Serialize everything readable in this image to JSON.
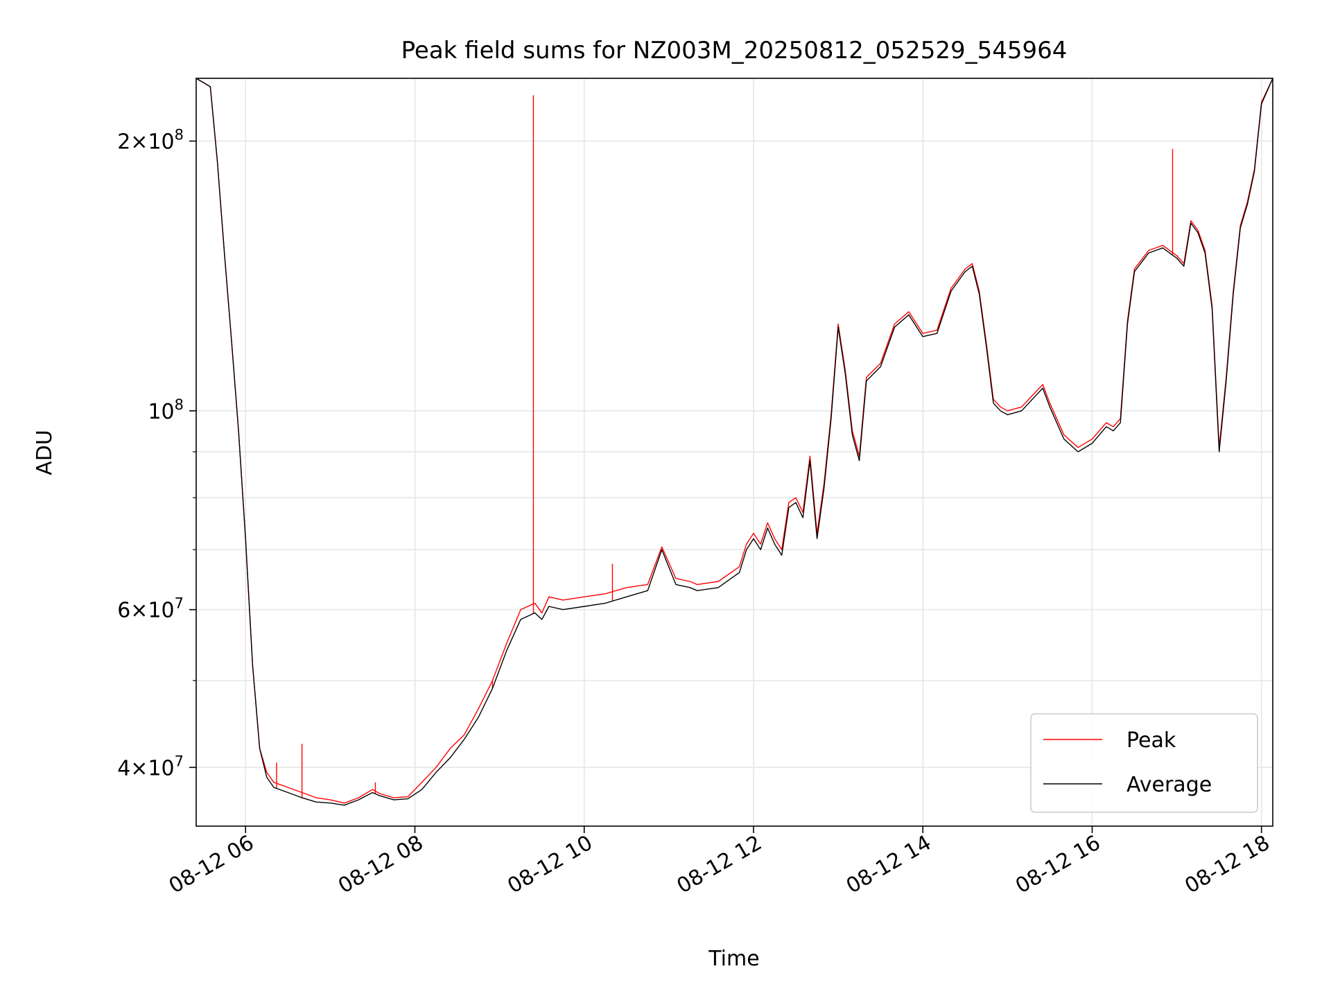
{
  "chart_data": {
    "type": "line",
    "title": "Peak field sums for NZ003M_20250812_052529_545964",
    "xlabel": "Time",
    "ylabel": "ADU",
    "y_scale": "log",
    "x_range": [
      "2025-08-12 05:25",
      "2025-08-12 18:08"
    ],
    "ylim": [
      34400000,
      235000000
    ],
    "grid": true,
    "legend_position": "lower-right",
    "x_ticks": [
      {
        "time": "2025-08-12 06:00",
        "label": "08-12 06"
      },
      {
        "time": "2025-08-12 08:00",
        "label": "08-12 08"
      },
      {
        "time": "2025-08-12 10:00",
        "label": "08-12 10"
      },
      {
        "time": "2025-08-12 12:00",
        "label": "08-12 12"
      },
      {
        "time": "2025-08-12 14:00",
        "label": "08-12 14"
      },
      {
        "time": "2025-08-12 16:00",
        "label": "08-12 16"
      },
      {
        "time": "2025-08-12 18:00",
        "label": "08-12 18"
      }
    ],
    "y_major_ticks": [
      {
        "value": 40000000,
        "mantissa": "4",
        "exponent": "7"
      },
      {
        "value": 60000000,
        "mantissa": "6",
        "exponent": "7"
      },
      {
        "value": 100000000,
        "mantissa": "",
        "exponent": "8"
      },
      {
        "value": 200000000,
        "mantissa": "2",
        "exponent": "8"
      }
    ],
    "y_minor_grid": [
      50000000,
      70000000,
      80000000,
      90000000
    ],
    "series": [
      {
        "name": "Average",
        "color": "#000000",
        "x": [
          "2025-08-12 05:25",
          "2025-08-12 05:35",
          "2025-08-12 05:40",
          "2025-08-12 05:45",
          "2025-08-12 05:50",
          "2025-08-12 05:55",
          "2025-08-12 06:00",
          "2025-08-12 06:05",
          "2025-08-12 06:10",
          "2025-08-12 06:15",
          "2025-08-12 06:20",
          "2025-08-12 06:30",
          "2025-08-12 06:40",
          "2025-08-12 06:50",
          "2025-08-12 07:00",
          "2025-08-12 07:10",
          "2025-08-12 07:20",
          "2025-08-12 07:30",
          "2025-08-12 07:35",
          "2025-08-12 07:45",
          "2025-08-12 07:55",
          "2025-08-12 08:05",
          "2025-08-12 08:15",
          "2025-08-12 08:25",
          "2025-08-12 08:35",
          "2025-08-12 08:45",
          "2025-08-12 08:55",
          "2025-08-12 09:05",
          "2025-08-12 09:15",
          "2025-08-12 09:20",
          "2025-08-12 09:25",
          "2025-08-12 09:30",
          "2025-08-12 09:35",
          "2025-08-12 09:45",
          "2025-08-12 10:00",
          "2025-08-12 10:15",
          "2025-08-12 10:30",
          "2025-08-12 10:45",
          "2025-08-12 10:55",
          "2025-08-12 11:05",
          "2025-08-12 11:15",
          "2025-08-12 11:20",
          "2025-08-12 11:35",
          "2025-08-12 11:50",
          "2025-08-12 11:55",
          "2025-08-12 12:00",
          "2025-08-12 12:05",
          "2025-08-12 12:10",
          "2025-08-12 12:15",
          "2025-08-12 12:20",
          "2025-08-12 12:25",
          "2025-08-12 12:30",
          "2025-08-12 12:35",
          "2025-08-12 12:40",
          "2025-08-12 12:45",
          "2025-08-12 12:50",
          "2025-08-12 12:55",
          "2025-08-12 13:00",
          "2025-08-12 13:05",
          "2025-08-12 13:10",
          "2025-08-12 13:15",
          "2025-08-12 13:20",
          "2025-08-12 13:30",
          "2025-08-12 13:40",
          "2025-08-12 13:50",
          "2025-08-12 14:00",
          "2025-08-12 14:10",
          "2025-08-12 14:20",
          "2025-08-12 14:30",
          "2025-08-12 14:35",
          "2025-08-12 14:40",
          "2025-08-12 14:45",
          "2025-08-12 14:50",
          "2025-08-12 14:55",
          "2025-08-12 15:00",
          "2025-08-12 15:10",
          "2025-08-12 15:20",
          "2025-08-12 15:25",
          "2025-08-12 15:30",
          "2025-08-12 15:40",
          "2025-08-12 15:50",
          "2025-08-12 16:00",
          "2025-08-12 16:10",
          "2025-08-12 16:15",
          "2025-08-12 16:20",
          "2025-08-12 16:25",
          "2025-08-12 16:30",
          "2025-08-12 16:40",
          "2025-08-12 16:50",
          "2025-08-12 17:00",
          "2025-08-12 17:05",
          "2025-08-12 17:10",
          "2025-08-12 17:15",
          "2025-08-12 17:20",
          "2025-08-12 17:25",
          "2025-08-12 17:30",
          "2025-08-12 17:35",
          "2025-08-12 17:40",
          "2025-08-12 17:45",
          "2025-08-12 17:50",
          "2025-08-12 17:55",
          "2025-08-12 18:00",
          "2025-08-12 18:08"
        ],
        "y": [
          235000000,
          230000000,
          190000000,
          150000000,
          120000000,
          95000000,
          72000000,
          52000000,
          42000000,
          39000000,
          38000000,
          37500000,
          37000000,
          36600000,
          36500000,
          36300000,
          36800000,
          37500000,
          37200000,
          36800000,
          36900000,
          37800000,
          39500000,
          41000000,
          43000000,
          45500000,
          49000000,
          54000000,
          58500000,
          59000000,
          59500000,
          58500000,
          60500000,
          60000000,
          60500000,
          61000000,
          62000000,
          63000000,
          70000000,
          64000000,
          63500000,
          63000000,
          63500000,
          66000000,
          70000000,
          72000000,
          70000000,
          74000000,
          71000000,
          69000000,
          78000000,
          79000000,
          76000000,
          88000000,
          72000000,
          82000000,
          98000000,
          124000000,
          110000000,
          94000000,
          88000000,
          108000000,
          112000000,
          124000000,
          128000000,
          121000000,
          122000000,
          136000000,
          143000000,
          145000000,
          135000000,
          118000000,
          102000000,
          100000000,
          99000000,
          100000000,
          104000000,
          106000000,
          101000000,
          93000000,
          90000000,
          92000000,
          96000000,
          95000000,
          97000000,
          125000000,
          143000000,
          150000000,
          152000000,
          148000000,
          145000000,
          162000000,
          158000000,
          150000000,
          130000000,
          90000000,
          108000000,
          135000000,
          160000000,
          170000000,
          185000000,
          220000000,
          235000000
        ]
      },
      {
        "name": "Peak",
        "color": "#ff0000",
        "x": [
          "2025-08-12 05:25",
          "2025-08-12 05:35",
          "2025-08-12 05:40",
          "2025-08-12 05:45",
          "2025-08-12 05:50",
          "2025-08-12 05:55",
          "2025-08-12 06:00",
          "2025-08-12 06:05",
          "2025-08-12 06:10",
          "2025-08-12 06:15",
          "2025-08-12 06:20",
          "2025-08-12 06:30",
          "2025-08-12 06:40",
          "2025-08-12 06:50",
          "2025-08-12 07:00",
          "2025-08-12 07:10",
          "2025-08-12 07:20",
          "2025-08-12 07:30",
          "2025-08-12 07:35",
          "2025-08-12 07:45",
          "2025-08-12 07:55",
          "2025-08-12 08:05",
          "2025-08-12 08:15",
          "2025-08-12 08:25",
          "2025-08-12 08:35",
          "2025-08-12 08:45",
          "2025-08-12 08:55",
          "2025-08-12 09:05",
          "2025-08-12 09:15",
          "2025-08-12 09:20",
          "2025-08-12 09:25",
          "2025-08-12 09:30",
          "2025-08-12 09:35",
          "2025-08-12 09:45",
          "2025-08-12 10:00",
          "2025-08-12 10:15",
          "2025-08-12 10:30",
          "2025-08-12 10:45",
          "2025-08-12 10:55",
          "2025-08-12 11:05",
          "2025-08-12 11:15",
          "2025-08-12 11:20",
          "2025-08-12 11:35",
          "2025-08-12 11:50",
          "2025-08-12 11:55",
          "2025-08-12 12:00",
          "2025-08-12 12:05",
          "2025-08-12 12:10",
          "2025-08-12 12:15",
          "2025-08-12 12:20",
          "2025-08-12 12:25",
          "2025-08-12 12:30",
          "2025-08-12 12:35",
          "2025-08-12 12:40",
          "2025-08-12 12:45",
          "2025-08-12 12:50",
          "2025-08-12 12:55",
          "2025-08-12 13:00",
          "2025-08-12 13:05",
          "2025-08-12 13:10",
          "2025-08-12 13:15",
          "2025-08-12 13:20",
          "2025-08-12 13:30",
          "2025-08-12 13:40",
          "2025-08-12 13:50",
          "2025-08-12 14:00",
          "2025-08-12 14:10",
          "2025-08-12 14:20",
          "2025-08-12 14:30",
          "2025-08-12 14:35",
          "2025-08-12 14:40",
          "2025-08-12 14:45",
          "2025-08-12 14:50",
          "2025-08-12 14:55",
          "2025-08-12 15:00",
          "2025-08-12 15:10",
          "2025-08-12 15:20",
          "2025-08-12 15:25",
          "2025-08-12 15:30",
          "2025-08-12 15:40",
          "2025-08-12 15:50",
          "2025-08-12 16:00",
          "2025-08-12 16:10",
          "2025-08-12 16:15",
          "2025-08-12 16:20",
          "2025-08-12 16:25",
          "2025-08-12 16:30",
          "2025-08-12 16:40",
          "2025-08-12 16:50",
          "2025-08-12 17:00",
          "2025-08-12 17:05",
          "2025-08-12 17:10",
          "2025-08-12 17:15",
          "2025-08-12 17:20",
          "2025-08-12 17:25",
          "2025-08-12 17:30",
          "2025-08-12 17:35",
          "2025-08-12 17:40",
          "2025-08-12 17:45",
          "2025-08-12 17:50",
          "2025-08-12 17:55",
          "2025-08-12 18:00",
          "2025-08-12 18:08"
        ],
        "y": [
          235000000,
          230000000,
          190000000,
          150000000,
          120000000,
          95000000,
          72000000,
          52000000,
          42000000,
          39500000,
          38500000,
          38000000,
          37500000,
          37000000,
          36800000,
          36500000,
          37000000,
          37800000,
          37400000,
          37000000,
          37100000,
          38500000,
          40000000,
          42000000,
          43500000,
          46500000,
          50000000,
          55000000,
          60000000,
          60500000,
          61000000,
          59500000,
          62000000,
          61500000,
          62000000,
          62500000,
          63500000,
          64000000,
          70500000,
          65000000,
          64500000,
          64000000,
          64500000,
          67000000,
          71000000,
          73000000,
          71000000,
          75000000,
          72000000,
          70000000,
          79000000,
          80000000,
          77000000,
          89000000,
          73000000,
          83000000,
          99000000,
          125000000,
          111000000,
          95000000,
          89000000,
          109000000,
          113000000,
          125000000,
          129000000,
          122000000,
          123000000,
          137000000,
          144000000,
          146000000,
          136000000,
          119000000,
          103000000,
          101000000,
          100000000,
          101000000,
          105000000,
          107000000,
          102000000,
          94000000,
          91000000,
          93000000,
          97000000,
          96000000,
          98000000,
          126000000,
          144000000,
          151000000,
          153000000,
          149000000,
          146000000,
          163000000,
          159000000,
          151000000,
          131000000,
          91000000,
          109000000,
          136000000,
          161000000,
          171000000,
          186000000,
          221000000,
          235000000
        ],
        "spikes": [
          {
            "x": "2025-08-12 06:22",
            "y": 40500000
          },
          {
            "x": "2025-08-12 06:40",
            "y": 42500000
          },
          {
            "x": "2025-08-12 07:32",
            "y": 38500000
          },
          {
            "x": "2025-08-12 08:55",
            "y": 50000000
          },
          {
            "x": "2025-08-12 09:24",
            "y": 225000000
          },
          {
            "x": "2025-08-12 10:20",
            "y": 67500000
          },
          {
            "x": "2025-08-12 16:57",
            "y": 196000000
          }
        ]
      }
    ]
  }
}
